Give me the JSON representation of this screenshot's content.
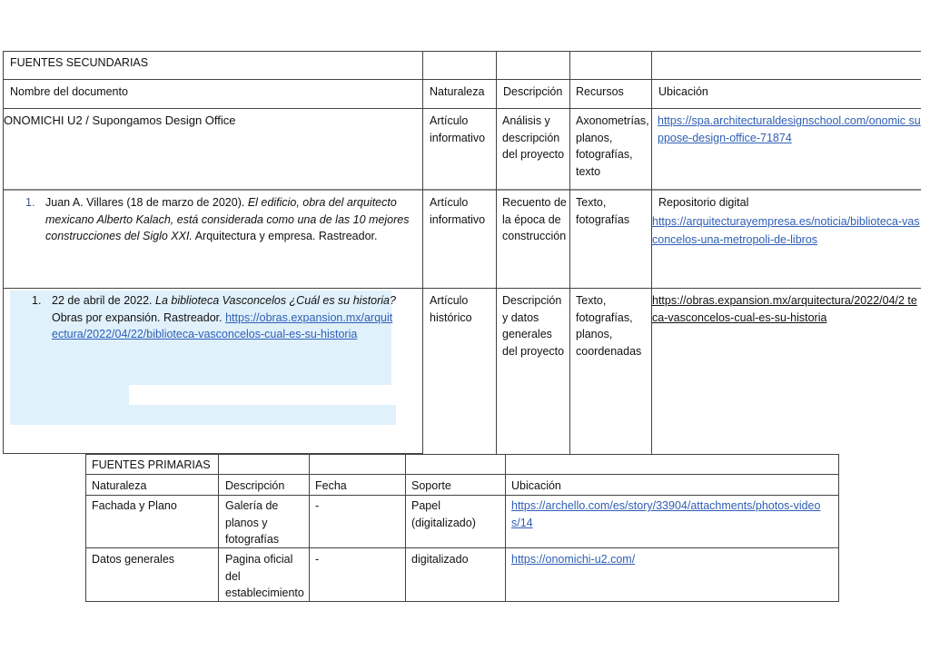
{
  "secondary": {
    "title": "FUENTES SECUNDARIAS",
    "headers": [
      "Nombre del documento",
      "Naturaleza",
      "Descripción",
      "Recursos",
      "Ubicación"
    ],
    "rows": [
      {
        "name": "ONOMICHI U2 / Supongamos Design Office",
        "naturaleza": "Artículo informativo",
        "descripcion": "Análisis y descripción del proyecto",
        "recursos": "Axonometrías, planos, fotografías, texto",
        "ubicacion_link": "https://spa.architecturaldesignschool.com/onomic suppose-design-office-71874"
      },
      {
        "number": "1.",
        "author": "Juan A. Villares (18 de marzo de 2020).",
        "title_italic": "El edificio, obra del arquitecto mexicano Alberto Kalach, está considerada como una de las 10 mejores construcciones del Siglo XXI.",
        "rest": "Arquitectura y empresa. Rastreador.",
        "naturaleza": "Artículo informativo",
        "descripcion": "Recuento de la época de construcción",
        "recursos": "Texto, fotografías",
        "ubicacion_text": "Repositorio digital",
        "ubicacion_link": "https://arquitecturayempresa.es/noticia/biblioteca-vasconcelos-una-metropoli-de-libros"
      },
      {
        "number": "1.",
        "author": "22 de abril de 2022.",
        "title_italic": "La biblioteca Vasconcelos ¿Cuál es su historia?",
        "rest": "Obras por expansión. Rastreador.",
        "link": "https://obras.expansion.mx/arquitectura/2022/04/22/biblioteca-vasconcelos-cual-es-su-historia",
        "naturaleza": "Artículo histórico",
        "descripcion": "Descripción y datos generales del proyecto",
        "recursos": "Texto, fotografías, planos, coordenadas",
        "ubicacion_link": "https://obras.expansion.mx/arquitectura/2022/04/2 teca-vasconcelos-cual-es-su-historia"
      }
    ]
  },
  "primary": {
    "title": "FUENTES PRIMARIAS",
    "headers": [
      "Naturaleza",
      "Descripción",
      "Fecha",
      "Soporte",
      "Ubicación"
    ],
    "rows": [
      {
        "naturaleza": "Fachada y Plano",
        "descripcion": "Galería de planos y fotografías",
        "fecha": "-",
        "soporte": "Papel (digitalizado)",
        "ubicacion": "https://archello.com/es/story/33904/attachments/photos-videos/14"
      },
      {
        "naturaleza": "Datos generales",
        "descripcion": "Pagina oficial del establecimiento",
        "fecha": "-",
        "soporte": "digitalizado",
        "ubicacion": "https://onomichi-u2.com/"
      }
    ]
  }
}
